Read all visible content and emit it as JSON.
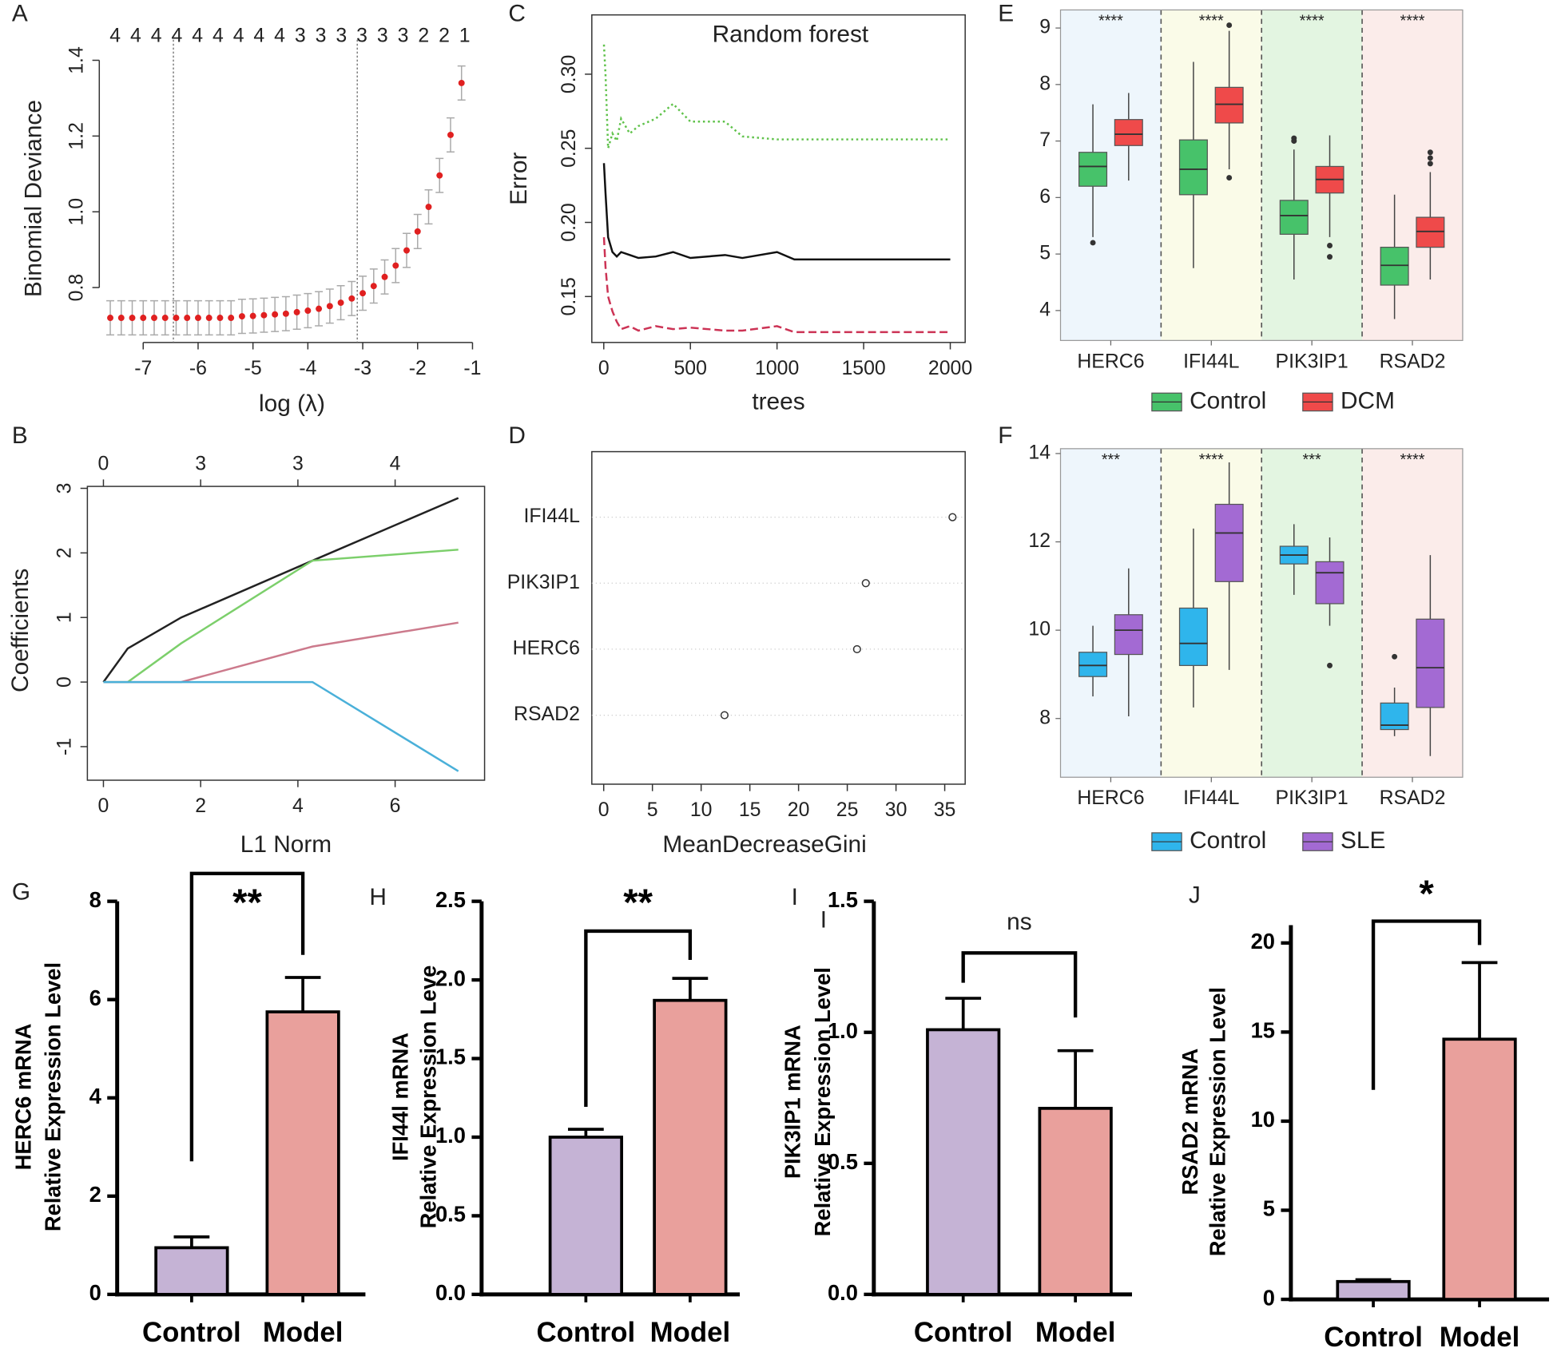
{
  "chart_data": [
    {
      "type": "scatter",
      "panel": "A",
      "xlabel": "log (λ)",
      "ylabel": "Binomial Deviance",
      "top_axis": [
        4,
        4,
        4,
        4,
        4,
        4,
        4,
        4,
        4,
        3,
        3,
        3,
        3,
        3,
        3,
        2,
        2,
        1
      ],
      "vlines": [
        -6.45,
        -3.1
      ],
      "color": "#e02020",
      "error_color": "#aaaaaa",
      "error": 0.045,
      "x": [
        -7.6,
        -7.4,
        -7.2,
        -7.0,
        -6.8,
        -6.6,
        -6.4,
        -6.2,
        -6.0,
        -5.8,
        -5.6,
        -5.4,
        -5.2,
        -5.0,
        -4.8,
        -4.6,
        -4.4,
        -4.2,
        -4.0,
        -3.8,
        -3.6,
        -3.4,
        -3.2,
        -3.0,
        -2.8,
        -2.6,
        -2.4,
        -2.2,
        -2.0,
        -1.8,
        -1.6,
        -1.4,
        -1.2
      ],
      "values": [
        0.72,
        0.72,
        0.72,
        0.72,
        0.72,
        0.72,
        0.72,
        0.72,
        0.72,
        0.72,
        0.72,
        0.72,
        0.724,
        0.725,
        0.727,
        0.729,
        0.731,
        0.735,
        0.739,
        0.744,
        0.751,
        0.76,
        0.771,
        0.785,
        0.804,
        0.828,
        0.858,
        0.898,
        0.948,
        1.013,
        1.096,
        1.203,
        1.34
      ],
      "xlim": [
        -7.8,
        -0.78
      ],
      "xticks": [
        -7,
        -6,
        -5,
        -4,
        -3,
        -2,
        -1
      ],
      "ylim": [
        0.655,
        1.415
      ],
      "yticks": [
        0.8,
        {
          "value": 1,
          "label": "1.0"
        },
        1.2,
        1.4
      ]
    },
    {
      "type": "line",
      "panel": "B",
      "xlabel": "L1 Norm",
      "ylabel": "Coefficients",
      "x": [
        0,
        0.5,
        1.6,
        4.3,
        7.3
      ],
      "series": [
        {
          "color": "#222222",
          "dash": "solid",
          "values": [
            0,
            0.52,
            1.0,
            1.88,
            2.85
          ]
        },
        {
          "color": "#7ccf6b",
          "dash": "solid",
          "values": [
            0,
            0,
            0.6,
            1.88,
            2.05
          ]
        },
        {
          "color": "#cc7a8c",
          "dash": "solid",
          "values": [
            0,
            0,
            0,
            0.55,
            0.92
          ]
        },
        {
          "color": "#4ab0d9",
          "dash": "solid",
          "values": [
            0,
            0,
            0,
            0,
            -1.38
          ]
        }
      ],
      "xlim": [
        -0.33,
        7.84
      ],
      "xticks": [
        0,
        2,
        4,
        6
      ],
      "top_ticks": [
        0,
        {
          "value": 2,
          "label": "3"
        },
        {
          "value": 4,
          "label": "3"
        },
        {
          "value": 6,
          "label": "4"
        }
      ],
      "ylim": [
        -1.52,
        3.03
      ],
      "yticks": [
        -1,
        0,
        1,
        2,
        3
      ]
    },
    {
      "type": "line",
      "panel": "C",
      "title": "Random forest",
      "xlabel": "trees",
      "ylabel": "Error",
      "x": [
        1,
        10,
        25,
        50,
        75,
        100,
        150,
        200,
        300,
        400,
        500,
        700,
        800,
        1000,
        1100,
        1500,
        2000
      ],
      "series": [
        {
          "color": "#5fc24a",
          "dash": "dotted",
          "values": [
            0.32,
            0.3,
            0.25,
            0.26,
            0.255,
            0.27,
            0.26,
            0.265,
            0.27,
            0.28,
            0.268,
            0.268,
            0.258,
            0.256,
            0.256,
            0.256,
            0.256
          ]
        },
        {
          "color": "#111111",
          "dash": "solid",
          "values": [
            0.24,
            0.22,
            0.19,
            0.18,
            0.177,
            0.18,
            0.178,
            0.176,
            0.177,
            0.18,
            0.176,
            0.178,
            0.176,
            0.18,
            0.175,
            0.175,
            0.175
          ]
        },
        {
          "color": "#cc3355",
          "dash": "dashed",
          "values": [
            0.19,
            0.17,
            0.15,
            0.14,
            0.133,
            0.128,
            0.13,
            0.127,
            0.13,
            0.128,
            0.129,
            0.127,
            0.127,
            0.13,
            0.126,
            0.126,
            0.126
          ]
        }
      ],
      "xlim": [
        -69,
        2086
      ],
      "xticks": [
        0,
        500,
        1000,
        1500,
        2000
      ],
      "ylim": [
        0.119,
        0.34
      ],
      "yticks": [
        0.15,
        {
          "value": 0.2,
          "label": "0.20"
        },
        0.25,
        {
          "value": 0.3,
          "label": "0.30"
        }
      ]
    },
    {
      "type": "dot",
      "panel": "D",
      "xlabel": "MeanDecreaseGini",
      "categories": [
        "IFI44L",
        "PIK3IP1",
        "HERC6",
        "RSAD2"
      ],
      "values": [
        35.8,
        26.9,
        26.0,
        12.4
      ],
      "xlim": [
        -1.22,
        37.1
      ],
      "xticks": [
        0,
        5,
        10,
        15,
        20,
        25,
        30,
        35
      ]
    },
    {
      "type": "box",
      "panel": "E",
      "categories": [
        "HERC6",
        "IFI44L",
        "PIK3IP1",
        "RSAD2"
      ],
      "sig": [
        "****",
        "****",
        "****",
        "****"
      ],
      "band_colors": [
        "#eef6fc",
        "#fafbe8",
        "#e3f5e1",
        "#fbecea"
      ],
      "series": [
        {
          "name": "Control",
          "color": "#47c26a",
          "boxes": [
            {
              "min": 5.3,
              "q1": 6.2,
              "median": 6.55,
              "q3": 6.8,
              "max": 7.65,
              "outliers": [
                5.2
              ]
            },
            {
              "min": 4.75,
              "q1": 6.05,
              "median": 6.5,
              "q3": 7.02,
              "max": 8.4,
              "outliers": []
            },
            {
              "min": 4.55,
              "q1": 5.35,
              "median": 5.68,
              "q3": 5.95,
              "max": 6.85,
              "outliers": [
                7.0,
                7.05
              ]
            },
            {
              "min": 3.85,
              "q1": 4.45,
              "median": 4.8,
              "q3": 5.12,
              "max": 6.05,
              "outliers": []
            }
          ]
        },
        {
          "name": "DCM",
          "color": "#ef4a4a",
          "boxes": [
            {
              "min": 6.3,
              "q1": 6.92,
              "median": 7.12,
              "q3": 7.38,
              "max": 7.85,
              "outliers": []
            },
            {
              "min": 6.5,
              "q1": 7.32,
              "median": 7.65,
              "q3": 7.95,
              "max": 8.95,
              "outliers": [
                6.35,
                9.05
              ]
            },
            {
              "min": 5.3,
              "q1": 6.08,
              "median": 6.32,
              "q3": 6.55,
              "max": 7.1,
              "outliers": [
                5.15,
                4.95
              ]
            },
            {
              "min": 4.55,
              "q1": 5.12,
              "median": 5.4,
              "q3": 5.65,
              "max": 6.45,
              "outliers": [
                6.6,
                6.7,
                6.8
              ]
            }
          ]
        }
      ],
      "ylim": [
        3.47,
        9.32
      ],
      "yticks": [
        4,
        5,
        6,
        7,
        8,
        9
      ]
    },
    {
      "type": "box",
      "panel": "F",
      "categories": [
        "HERC6",
        "IFI44L",
        "PIK3IP1",
        "RSAD2"
      ],
      "sig": [
        "***",
        "****",
        "***",
        "****"
      ],
      "band_colors": [
        "#eef6fc",
        "#fafbe8",
        "#e3f5e1",
        "#fbecea"
      ],
      "series": [
        {
          "name": "Control",
          "color": "#2fb5ec",
          "boxes": [
            {
              "min": 8.5,
              "q1": 8.95,
              "median": 9.2,
              "q3": 9.5,
              "max": 10.1,
              "outliers": []
            },
            {
              "min": 8.25,
              "q1": 9.2,
              "median": 9.7,
              "q3": 10.5,
              "max": 12.3,
              "outliers": []
            },
            {
              "min": 10.8,
              "q1": 11.5,
              "median": 11.7,
              "q3": 11.9,
              "max": 12.4,
              "outliers": []
            },
            {
              "min": 7.6,
              "q1": 7.75,
              "median": 7.85,
              "q3": 8.35,
              "max": 8.7,
              "outliers": [
                9.4
              ]
            }
          ]
        },
        {
          "name": "SLE",
          "color": "#a36ad3",
          "boxes": [
            {
              "min": 8.05,
              "q1": 9.45,
              "median": 10.0,
              "q3": 10.35,
              "max": 11.4,
              "outliers": []
            },
            {
              "min": 9.1,
              "q1": 11.1,
              "median": 12.2,
              "q3": 12.85,
              "max": 13.8,
              "outliers": []
            },
            {
              "min": 10.1,
              "q1": 10.6,
              "median": 11.3,
              "q3": 11.55,
              "max": 12.1,
              "outliers": [
                9.2
              ]
            },
            {
              "min": 7.15,
              "q1": 8.25,
              "median": 9.15,
              "q3": 10.25,
              "max": 11.7,
              "outliers": []
            }
          ]
        }
      ],
      "ylim": [
        6.67,
        14.11
      ],
      "yticks": [
        8,
        10,
        12,
        14
      ]
    },
    {
      "type": "bar",
      "panel": "G",
      "ylabel": [
        "HERC6 mRNA",
        "Relative Expression Level"
      ],
      "sig": "**",
      "categories": [
        "Control",
        "Model"
      ],
      "values": [
        0.95,
        5.75
      ],
      "errors": [
        0.22,
        0.7
      ],
      "colors": [
        "#c5b3d5",
        "#e9a09c"
      ],
      "ylim": [
        0,
        8
      ],
      "yticks": [
        0,
        2,
        4,
        6,
        8
      ]
    },
    {
      "type": "bar",
      "panel": "H",
      "ylabel": [
        "IFI44l mRNA",
        "Relative Expression Leve"
      ],
      "sig": "**",
      "categories": [
        "Control",
        "Model"
      ],
      "values": [
        1.0,
        1.87
      ],
      "errors": [
        0.05,
        0.14
      ],
      "colors": [
        "#c5b3d5",
        "#e9a09c"
      ],
      "ylim": [
        0,
        2.5
      ],
      "yticks": [
        {
          "value": 0,
          "label": "0.0"
        },
        0.5,
        {
          "value": 1,
          "label": "1.0"
        },
        1.5,
        {
          "value": 2,
          "label": "2.0"
        },
        2.5
      ]
    },
    {
      "type": "bar",
      "panel": "I",
      "extra_label": "I",
      "ylabel": [
        "PIK3IP1 mRNA",
        "Relative Expression Level"
      ],
      "sig": "ns",
      "categories": [
        "Control",
        "Model"
      ],
      "values": [
        1.01,
        0.71
      ],
      "errors": [
        0.12,
        0.22
      ],
      "colors": [
        "#c5b3d5",
        "#e9a09c"
      ],
      "ylim": [
        0,
        1.5
      ],
      "yticks": [
        {
          "value": 0,
          "label": "0.0"
        },
        0.5,
        {
          "value": 1,
          "label": "1.0"
        },
        1.5
      ]
    },
    {
      "type": "bar",
      "panel": "J",
      "ylabel": [
        "RSAD2 mRNA",
        "Relative Expression Level"
      ],
      "sig": "*",
      "categories": [
        "Control",
        "Model"
      ],
      "values": [
        1.0,
        14.6
      ],
      "errors": [
        0.1,
        4.3
      ],
      "colors": [
        "#c5b3d5",
        "#e9a09c"
      ],
      "ylim": [
        0,
        21
      ],
      "yticks": [
        0,
        5,
        10,
        15,
        20
      ]
    }
  ]
}
